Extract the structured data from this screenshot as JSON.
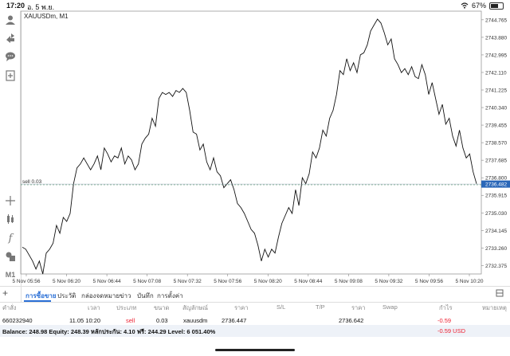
{
  "status": {
    "time": "17:20",
    "date": "อ. 5 พ.ย.",
    "battery": "67%"
  },
  "symbol": "XAUUSDm, M1",
  "sidebar_icons": [
    "person-icon",
    "trade-icon",
    "chat-icon",
    "add-doc-icon",
    "crosshair-icon",
    "indicator-icon",
    "function-icon",
    "objects-icon",
    "timeframe-label"
  ],
  "timeframe": "M1",
  "chart_data": {
    "type": "line",
    "symbol": "XAUUSDm",
    "timeframe": "M1",
    "x_ticks": [
      "5 Nov 05:56",
      "5 Nov 06:20",
      "5 Nov 06:44",
      "5 Nov 07:08",
      "5 Nov 07:32",
      "5 Nov 07:56",
      "5 Nov 08:20",
      "5 Nov 08:44",
      "5 Nov 09:08",
      "5 Nov 09:32",
      "5 Nov 09:56",
      "5 Nov 10:20"
    ],
    "y_ticks": [
      "2744.765",
      "2743.880",
      "2742.995",
      "2742.110",
      "2741.225",
      "2740.340",
      "2739.455",
      "2738.570",
      "2737.685",
      "2736.800",
      "2735.915",
      "2735.030",
      "2734.145",
      "2733.260",
      "2732.375"
    ],
    "ylim": [
      2731.95,
      2745.2
    ],
    "current_price": "2736.482",
    "sell_line_label": "sell 0.03",
    "sell_price": 2736.447,
    "values": [
      2733.3,
      2733.2,
      2732.9,
      2732.6,
      2732.2,
      2732.6,
      2731.95,
      2733.0,
      2733.2,
      2733.5,
      2734.4,
      2734.0,
      2734.8,
      2734.6,
      2735.0,
      2736.5,
      2737.3,
      2737.5,
      2737.8,
      2737.5,
      2737.2,
      2737.5,
      2737.9,
      2737.2,
      2738.3,
      2738.0,
      2737.6,
      2737.9,
      2737.8,
      2738.3,
      2737.5,
      2737.9,
      2737.7,
      2737.2,
      2737.5,
      2738.5,
      2738.8,
      2739.0,
      2739.8,
      2739.4,
      2740.8,
      2741.1,
      2741.0,
      2741.1,
      2740.9,
      2741.2,
      2741.1,
      2741.3,
      2741.1,
      2740.2,
      2739.1,
      2739.0,
      2738.2,
      2738.5,
      2737.6,
      2737.2,
      2737.8,
      2737.1,
      2736.9,
      2736.3,
      2736.5,
      2736.7,
      2736.2,
      2735.5,
      2735.3,
      2735.0,
      2734.6,
      2734.2,
      2734.0,
      2733.4,
      2732.6,
      2733.2,
      2732.8,
      2733.2,
      2733.0,
      2733.8,
      2734.5,
      2734.9,
      2735.3,
      2735.0,
      2736.2,
      2735.4,
      2736.8,
      2736.5,
      2737.0,
      2738.1,
      2737.8,
      2738.3,
      2739.2,
      2738.9,
      2739.8,
      2740.2,
      2741.0,
      2742.2,
      2742.0,
      2742.8,
      2742.2,
      2742.6,
      2742.1,
      2743.0,
      2743.1,
      2743.5,
      2744.2,
      2744.5,
      2744.8,
      2744.6,
      2744.1,
      2743.5,
      2743.8,
      2742.8,
      2742.5,
      2742.1,
      2742.3,
      2742.0,
      2742.4,
      2741.9,
      2741.8,
      2742.5,
      2742.0,
      2741.0,
      2741.6,
      2740.8,
      2740.0,
      2740.5,
      2739.5,
      2739.8,
      2738.9,
      2738.4,
      2739.2,
      2738.3,
      2737.8,
      2738.0,
      2737.1,
      2736.5
    ]
  },
  "tabs": [
    "การซื้อขาย",
    "ประวัติ",
    "กล่องจดหมาย",
    "ข่าว",
    "บันทึก",
    "การตั้งค่า"
  ],
  "table": {
    "headers": [
      "คำสั่ง",
      "เวลา",
      "ประเภท",
      "ขนาด",
      "สัญลักษณ์",
      "ราคา",
      "S/L",
      "T/P",
      "ราคา",
      "Swap",
      "กำไร",
      "หมายเหตุ"
    ],
    "row": {
      "order": "660232940",
      "time": "11.05 10:20",
      "type": "sell",
      "volume": "0.03",
      "symbol": "xauusdm",
      "open_price": "2736.447",
      "current_price": "2736.642",
      "profit": "-0.59"
    }
  },
  "footer": {
    "balance_line": "Balance: 248.98 Equity: 248.39 หลักประกัน: 4.10 ฟรี: 244.29 Level: 6 051.40%",
    "total_profit": "-0.59 USD"
  }
}
